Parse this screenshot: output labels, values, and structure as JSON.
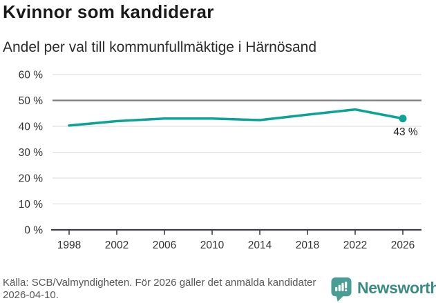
{
  "header": {
    "title": "Kvinnor som kandiderar",
    "subtitle": "Andel per val till kommunfullmäktige i Härnösand"
  },
  "chart_data": {
    "type": "line",
    "title": "Kvinnor som kandiderar",
    "subtitle": "Andel per val till kommunfullmäktige i Härnösand",
    "x": [
      1998,
      2002,
      2006,
      2010,
      2014,
      2018,
      2022,
      2026
    ],
    "values": [
      40.3,
      42,
      43,
      43,
      42.4,
      44.5,
      46.5,
      43
    ],
    "unit": "%",
    "ylim": [
      0,
      60
    ],
    "y_tick_step": 10,
    "y_tick_suffix": " %",
    "reference_line": 50,
    "end_point_label": "43 %",
    "grid": true,
    "legend": "none",
    "line_color": "#0aa396"
  },
  "footer": {
    "source": "Källa: SCB/Valmyndigheten. För 2026 gäller det anmälda kandidater 2026-04-10.",
    "brand": "Newsworthy"
  },
  "colors": {
    "line": "#0aa396",
    "axis": "#3a3e42",
    "reference_line": "#7a7d80",
    "grid": "#dadada",
    "tick_label": "#333333",
    "end_label": "#1c1c1c",
    "brand_teal": "#3b8b84"
  }
}
